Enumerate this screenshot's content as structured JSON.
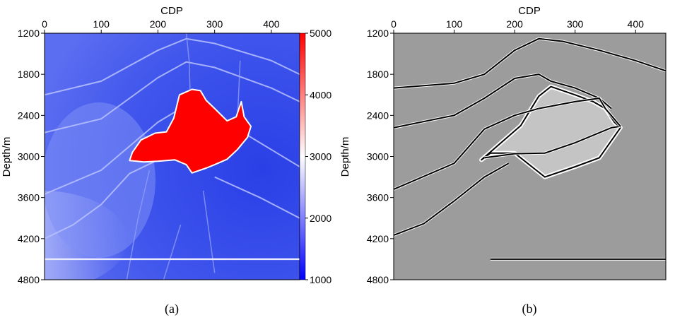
{
  "chart_data": [
    {
      "type": "heatmap",
      "panel": "velocity-model",
      "caption": "(a)",
      "xlabel": "CDP",
      "ylabel": "Depth/m",
      "xlim": [
        0,
        450
      ],
      "ylim": [
        1200,
        4800
      ],
      "x_ticks": [
        0,
        100,
        200,
        300,
        400
      ],
      "y_ticks": [
        1200,
        1800,
        2400,
        3000,
        3600,
        4200,
        4800
      ],
      "colorbar": {
        "min": 1000,
        "max": 5000,
        "ticks": [
          1000,
          2000,
          3000,
          4000,
          5000
        ],
        "colors": [
          "#0000ff",
          "#ffffff",
          "#ff0000"
        ]
      },
      "background_value": 2200,
      "salt_body": {
        "value": 5000,
        "outline_cdp_depth": [
          [
            150,
            3060
          ],
          [
            155,
            2940
          ],
          [
            170,
            2760
          ],
          [
            195,
            2660
          ],
          [
            215,
            2640
          ],
          [
            228,
            2440
          ],
          [
            238,
            2100
          ],
          [
            260,
            2020
          ],
          [
            275,
            2040
          ],
          [
            285,
            2180
          ],
          [
            300,
            2300
          ],
          [
            322,
            2480
          ],
          [
            338,
            2420
          ],
          [
            347,
            2200
          ],
          [
            352,
            2420
          ],
          [
            364,
            2560
          ],
          [
            358,
            2720
          ],
          [
            340,
            2900
          ],
          [
            322,
            3040
          ],
          [
            300,
            3120
          ],
          [
            285,
            3170
          ],
          [
            260,
            3240
          ],
          [
            250,
            3120
          ],
          [
            230,
            3050
          ],
          [
            200,
            3070
          ],
          [
            175,
            3080
          ]
        ]
      },
      "horizons_cdp_depth": [
        [
          [
            0,
            2100
          ],
          [
            100,
            1900
          ],
          [
            200,
            1450
          ],
          [
            250,
            1280
          ],
          [
            300,
            1350
          ],
          [
            400,
            1600
          ],
          [
            450,
            1800
          ]
        ],
        [
          [
            0,
            2650
          ],
          [
            100,
            2450
          ],
          [
            200,
            1850
          ],
          [
            250,
            1620
          ],
          [
            300,
            1700
          ],
          [
            400,
            2000
          ],
          [
            450,
            2200
          ]
        ],
        [
          [
            0,
            3550
          ],
          [
            100,
            3200
          ],
          [
            200,
            2500
          ],
          [
            250,
            2250
          ],
          [
            300,
            2400
          ],
          [
            400,
            2900
          ],
          [
            450,
            3150
          ]
        ],
        [
          [
            0,
            4200
          ],
          [
            50,
            4000
          ],
          [
            100,
            3700
          ],
          [
            150,
            3250
          ],
          [
            200,
            3050
          ]
        ],
        [
          [
            300,
            3300
          ],
          [
            380,
            3600
          ],
          [
            450,
            3900
          ]
        ]
      ],
      "faults_cdp_depth": [
        [
          [
            250,
            1200
          ],
          [
            255,
            1600
          ],
          [
            258,
            2400
          ]
        ],
        [
          [
            345,
            1600
          ],
          [
            340,
            2500
          ]
        ],
        [
          [
            145,
            4800
          ],
          [
            165,
            3900
          ],
          [
            185,
            3200
          ]
        ],
        [
          [
            210,
            4800
          ],
          [
            240,
            4000
          ]
        ],
        [
          [
            300,
            4700
          ],
          [
            280,
            3500
          ]
        ]
      ],
      "flat_reflector_depth": 4500
    },
    {
      "type": "heatmap",
      "panel": "seismic-image",
      "caption": "(b)",
      "xlabel": "CDP",
      "ylabel": "Depth/m",
      "xlim": [
        0,
        450
      ],
      "ylim": [
        1200,
        4800
      ],
      "x_ticks": [
        0,
        100,
        200,
        300,
        400
      ],
      "y_ticks": [
        1200,
        1800,
        2400,
        3000,
        3600,
        4200,
        4800
      ],
      "colors": [
        "#000000",
        "#999999",
        "#ffffff"
      ],
      "reflectors_cdp_depth": [
        [
          [
            0,
            2000
          ],
          [
            100,
            1930
          ],
          [
            150,
            1800
          ],
          [
            200,
            1450
          ],
          [
            240,
            1280
          ],
          [
            280,
            1320
          ],
          [
            340,
            1450
          ],
          [
            400,
            1600
          ],
          [
            450,
            1750
          ]
        ],
        [
          [
            0,
            2580
          ],
          [
            100,
            2400
          ],
          [
            150,
            2150
          ],
          [
            200,
            1860
          ],
          [
            240,
            1800
          ],
          [
            260,
            1900
          ],
          [
            300,
            2000
          ],
          [
            340,
            2150
          ],
          [
            360,
            2300
          ]
        ],
        [
          [
            0,
            3480
          ],
          [
            100,
            3100
          ],
          [
            150,
            2600
          ],
          [
            200,
            2400
          ],
          [
            240,
            2300
          ]
        ],
        [
          [
            0,
            4150
          ],
          [
            50,
            3980
          ],
          [
            100,
            3650
          ],
          [
            150,
            3300
          ],
          [
            190,
            3100
          ]
        ],
        [
          [
            150,
            3020
          ],
          [
            200,
            2960
          ],
          [
            250,
            2950
          ],
          [
            300,
            2800
          ],
          [
            360,
            2580
          ],
          [
            375,
            2560
          ]
        ],
        [
          [
            240,
            2300
          ],
          [
            300,
            2200
          ],
          [
            340,
            2150
          ],
          [
            350,
            2300
          ],
          [
            375,
            2560
          ]
        ],
        [
          [
            160,
            4500
          ],
          [
            450,
            4500
          ]
        ]
      ],
      "salt_outline_cdp_depth": [
        [
          145,
          3050
        ],
        [
          160,
          2950
        ],
        [
          200,
          2950
        ],
        [
          250,
          3300
        ],
        [
          300,
          3150
        ],
        [
          340,
          3020
        ],
        [
          375,
          2580
        ],
        [
          365,
          2500
        ],
        [
          350,
          2300
        ],
        [
          330,
          2200
        ],
        [
          300,
          2100
        ],
        [
          260,
          1980
        ],
        [
          240,
          2120
        ],
        [
          210,
          2550
        ],
        [
          180,
          2780
        ]
      ]
    }
  ]
}
